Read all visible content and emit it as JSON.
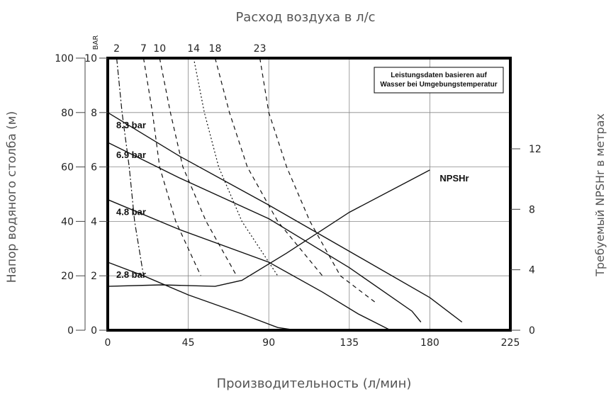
{
  "chart_data": {
    "type": "line",
    "title": "",
    "x_axis": {
      "label": "Производительность (л/мин)",
      "range": [
        0,
        225
      ],
      "ticks": [
        0,
        45,
        90,
        135,
        180,
        225
      ]
    },
    "top_axis": {
      "label": "Расход воздуха в л/с",
      "ticks": [
        2,
        7,
        10,
        14,
        18,
        23
      ]
    },
    "y_left_axis": {
      "label": "Напор водяного столба (м)",
      "range": [
        0,
        100
      ],
      "ticks": [
        0,
        20,
        40,
        60,
        80,
        100
      ]
    },
    "y_bar_axis": {
      "label": "BAR",
      "range": [
        0,
        10
      ],
      "ticks": [
        0,
        2,
        4,
        6,
        8,
        10
      ]
    },
    "y_right_axis": {
      "label": "Требуемый NPSHr в метрах",
      "range": [
        0,
        18
      ],
      "ticks": [
        0,
        4,
        8,
        12
      ]
    },
    "note": {
      "line1": "Leistungsdaten basieren auf",
      "line2": "Wasser bei Umgebungstemperatur"
    },
    "grid": true,
    "series": [
      {
        "name": "8.3 bar",
        "style": "solid",
        "axis": "left",
        "x": [
          0,
          40,
          90,
          135,
          180,
          198
        ],
        "y": [
          80,
          64,
          46,
          29,
          12,
          3
        ]
      },
      {
        "name": "6.9 bar",
        "style": "solid",
        "axis": "left",
        "x": [
          0,
          40,
          90,
          135,
          170,
          175
        ],
        "y": [
          69,
          56,
          41,
          23,
          7,
          3
        ]
      },
      {
        "name": "4.8 bar",
        "style": "solid",
        "axis": "left",
        "x": [
          0,
          40,
          90,
          120,
          140,
          158
        ],
        "y": [
          48,
          37,
          25,
          14,
          6,
          0
        ]
      },
      {
        "name": "2.8 bar",
        "style": "solid",
        "axis": "left",
        "x": [
          0,
          20,
          45,
          75,
          95,
          105
        ],
        "y": [
          25,
          20,
          13,
          6,
          1,
          0
        ]
      },
      {
        "name": "NPSHr",
        "style": "solid",
        "axis": "right",
        "x": [
          0,
          30,
          60,
          75,
          100,
          135,
          180
        ],
        "y": [
          2.9,
          3.0,
          2.9,
          3.3,
          5.1,
          7.8,
          10.6
        ]
      },
      {
        "name": "2",
        "style": "dashdot",
        "axis": "left",
        "x": [
          5,
          8,
          12,
          15,
          20
        ],
        "y": [
          100,
          80,
          60,
          40,
          20
        ]
      },
      {
        "name": "7",
        "style": "dashed",
        "axis": "left",
        "x": [
          20,
          25,
          29,
          38,
          52
        ],
        "y": [
          100,
          80,
          60,
          40,
          20
        ]
      },
      {
        "name": "10",
        "style": "dashed",
        "axis": "left",
        "x": [
          29,
          35,
          42,
          55,
          72
        ],
        "y": [
          100,
          80,
          60,
          40,
          20
        ]
      },
      {
        "name": "14",
        "style": "dotted",
        "axis": "left",
        "x": [
          48,
          54,
          62,
          75,
          95
        ],
        "y": [
          100,
          80,
          60,
          40,
          20
        ]
      },
      {
        "name": "18",
        "style": "dashed",
        "axis": "left",
        "x": [
          60,
          68,
          78,
          95,
          120
        ],
        "y": [
          100,
          80,
          60,
          40,
          20
        ]
      },
      {
        "name": "23",
        "style": "dashed",
        "axis": "left",
        "x": [
          85,
          90,
          100,
          113,
          130,
          150
        ],
        "y": [
          100,
          80,
          60,
          40,
          20,
          10
        ]
      }
    ]
  }
}
